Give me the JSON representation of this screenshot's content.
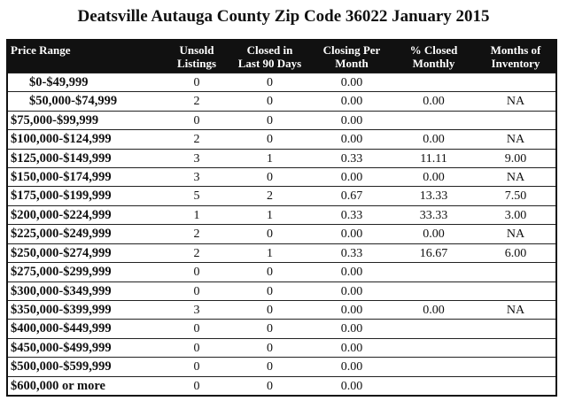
{
  "header": {
    "title": "Deatsville Autauga County Zip Code 36022 January 2015"
  },
  "table": {
    "columns": [
      [
        "Price Range"
      ],
      [
        "Unsold",
        "Listings"
      ],
      [
        "Closed in",
        "Last 90 Days"
      ],
      [
        "Closing Per",
        "Month"
      ],
      [
        "% Closed",
        "Monthly"
      ],
      [
        "Months of",
        "Inventory"
      ]
    ],
    "rows": [
      [
        "$0-$49,999",
        "0",
        "0",
        "0.00",
        null,
        null
      ],
      [
        "$50,000-$74,999",
        "2",
        "0",
        "0.00",
        "0.00",
        "NA"
      ],
      [
        "$75,000-$99,999",
        "0",
        "0",
        "0.00",
        null,
        null
      ],
      [
        "$100,000-$124,999",
        "2",
        "0",
        "0.00",
        "0.00",
        "NA"
      ],
      [
        "$125,000-$149,999",
        "3",
        "1",
        "0.33",
        "11.11",
        "9.00"
      ],
      [
        "$150,000-$174,999",
        "3",
        "0",
        "0.00",
        "0.00",
        "NA"
      ],
      [
        "$175,000-$199,999",
        "5",
        "2",
        "0.67",
        "13.33",
        "7.50"
      ],
      [
        "$200,000-$224,999",
        "1",
        "1",
        "0.33",
        "33.33",
        "3.00"
      ],
      [
        "$225,000-$249,999",
        "2",
        "0",
        "0.00",
        "0.00",
        "NA"
      ],
      [
        "$250,000-$274,999",
        "2",
        "1",
        "0.33",
        "16.67",
        "6.00"
      ],
      [
        "$275,000-$299,999",
        "0",
        "0",
        "0.00",
        null,
        null
      ],
      [
        "$300,000-$349,999",
        "0",
        "0",
        "0.00",
        null,
        null
      ],
      [
        "$350,000-$399,999",
        "3",
        "0",
        "0.00",
        "0.00",
        "NA"
      ],
      [
        "$400,000-$449,999",
        "0",
        "0",
        "0.00",
        null,
        null
      ],
      [
        "$450,000-$499,999",
        "0",
        "0",
        "0.00",
        null,
        null
      ],
      [
        "$500,000-$599,999",
        "0",
        "0",
        "0.00",
        null,
        null
      ],
      [
        "$600,000 or more",
        "0",
        "0",
        "0.00",
        null,
        null
      ]
    ]
  }
}
